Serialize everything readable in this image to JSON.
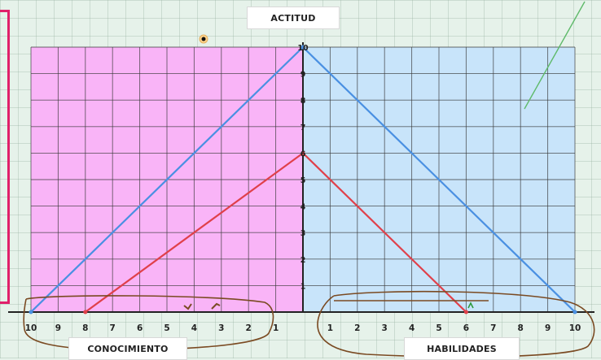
{
  "title": "ACTITUD",
  "left_axis_label": "CONOCIMIENTO",
  "right_axis_label": "HABILIDADES",
  "colors": {
    "left_fill": "#f9b4f7",
    "right_fill": "#c8e4fa",
    "grid_line": "#3a3a3a",
    "blue_line": "#4a90e2",
    "red_line": "#e0404a",
    "ink": "#7a4a22",
    "frame": "#e0206a"
  },
  "chart_data": {
    "type": "line",
    "title": "ACTITUD",
    "axes": {
      "conocimiento": {
        "label": "CONOCIMIENTO",
        "range": [
          0,
          10
        ],
        "ticks": [
          "10",
          "9",
          "8",
          "7",
          "6",
          "5",
          "4",
          "3",
          "2",
          "1"
        ]
      },
      "actitud": {
        "label": "ACTITUD",
        "range": [
          0,
          10
        ],
        "ticks": [
          "10",
          "9",
          "8",
          "7",
          "6",
          "5",
          "4",
          "3",
          "2",
          "1"
        ]
      },
      "habilidades": {
        "label": "HABILIDADES",
        "range": [
          0,
          10
        ],
        "ticks": [
          "1",
          "2",
          "3",
          "4",
          "5",
          "6",
          "7",
          "8",
          "9",
          "10"
        ]
      }
    },
    "series": [
      {
        "color": "#4a90e2",
        "conocimiento": 10,
        "actitud": 10,
        "habilidades": 10
      },
      {
        "color": "#e0404a",
        "conocimiento": 8,
        "actitud": 6,
        "habilidades": 6
      }
    ],
    "grid": true
  }
}
